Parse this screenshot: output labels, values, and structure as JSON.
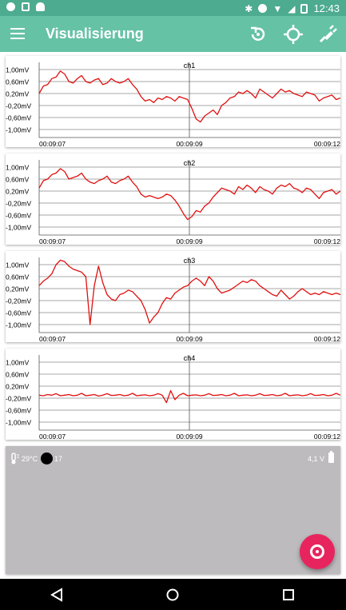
{
  "status_bar": {
    "time": "12:43",
    "icons": [
      "chrome-dino-icon",
      "lock-icon",
      "android-icon",
      "bluetooth-icon",
      "do-not-disturb-icon",
      "wifi-icon",
      "signal-icon",
      "battery-icon"
    ]
  },
  "app_bar": {
    "title": "Visualisierung",
    "actions": [
      "reset-icon",
      "target-icon",
      "plug-icon"
    ]
  },
  "y_ticks": [
    "1,00mV",
    "0,60mV",
    "0,20mV",
    "-0,20mV",
    "-0,60mV",
    "-1,00mV"
  ],
  "chart_data": [
    {
      "type": "line",
      "title": "ch1",
      "x_ticks": [
        "00:09:07",
        "00:09:09",
        "00:09:12"
      ],
      "ylim": [
        -1.2,
        1.2
      ],
      "color": "#e0100f",
      "y": [
        0.2,
        0.45,
        0.5,
        0.7,
        0.75,
        0.95,
        0.85,
        0.6,
        0.55,
        0.7,
        0.8,
        0.6,
        0.55,
        0.65,
        0.7,
        0.5,
        0.55,
        0.7,
        0.6,
        0.55,
        0.6,
        0.7,
        0.5,
        0.35,
        0.1,
        -0.05,
        0.0,
        -0.1,
        0.05,
        0.0,
        0.1,
        0.05,
        -0.05,
        0.1,
        0.05,
        0.0,
        -0.3,
        -0.65,
        -0.75,
        -0.55,
        -0.45,
        -0.35,
        -0.5,
        -0.2,
        -0.1,
        0.05,
        0.1,
        0.25,
        0.2,
        0.3,
        0.2,
        0.05,
        0.35,
        0.25,
        0.15,
        0.05,
        0.2,
        0.35,
        0.25,
        0.3,
        0.2,
        0.15,
        0.1,
        0.25,
        0.2,
        0.15,
        -0.05,
        0.05,
        0.1,
        0.15,
        0.0,
        0.05
      ]
    },
    {
      "type": "line",
      "title": "ch2",
      "x_ticks": [
        "00:09:07",
        "00:09:09",
        "00:09:12"
      ],
      "ylim": [
        -1.2,
        1.2
      ],
      "color": "#e0100f",
      "y": [
        0.3,
        0.55,
        0.6,
        0.75,
        0.8,
        0.95,
        0.85,
        0.6,
        0.65,
        0.7,
        0.8,
        0.6,
        0.5,
        0.45,
        0.55,
        0.6,
        0.7,
        0.5,
        0.45,
        0.55,
        0.6,
        0.7,
        0.5,
        0.35,
        0.1,
        0.0,
        0.05,
        0.0,
        -0.05,
        0.0,
        0.1,
        0.05,
        -0.1,
        -0.3,
        -0.55,
        -0.75,
        -0.65,
        -0.45,
        -0.5,
        -0.3,
        -0.2,
        0.0,
        0.15,
        0.3,
        0.25,
        0.2,
        0.1,
        0.35,
        0.25,
        0.4,
        0.3,
        0.15,
        0.35,
        0.25,
        0.2,
        0.1,
        0.3,
        0.4,
        0.35,
        0.45,
        0.3,
        0.25,
        0.15,
        0.3,
        0.25,
        0.1,
        -0.05,
        0.15,
        0.2,
        0.25,
        0.1,
        0.2
      ]
    },
    {
      "type": "line",
      "title": "ch3",
      "x_ticks": [
        "00:09:07",
        "00:09:09",
        "00:09:12"
      ],
      "ylim": [
        -1.2,
        1.2
      ],
      "color": "#e0100f",
      "y": [
        0.3,
        0.45,
        0.55,
        0.7,
        1.0,
        1.15,
        1.1,
        0.95,
        0.85,
        0.8,
        0.75,
        0.6,
        -1.0,
        0.3,
        0.95,
        0.4,
        0.0,
        -0.15,
        -0.2,
        0.0,
        0.05,
        0.15,
        0.1,
        -0.05,
        -0.2,
        -0.5,
        -0.95,
        -0.75,
        -0.6,
        -0.3,
        -0.1,
        -0.15,
        0.05,
        0.15,
        0.25,
        0.3,
        0.45,
        0.55,
        0.45,
        0.3,
        0.6,
        0.45,
        0.2,
        0.05,
        0.1,
        0.15,
        0.25,
        0.35,
        0.45,
        0.4,
        0.5,
        0.45,
        0.3,
        0.2,
        0.1,
        0.0,
        -0.05,
        0.15,
        0.0,
        -0.15,
        -0.05,
        0.1,
        0.2,
        0.1,
        0.0,
        0.05,
        0.0,
        0.1,
        0.05,
        0.0,
        0.05,
        0.0
      ]
    },
    {
      "type": "line",
      "title": "ch4",
      "x_ticks": [
        "00:09:07",
        "00:09:09",
        "00:09:12"
      ],
      "ylim": [
        -1.2,
        1.2
      ],
      "color": "#e0100f",
      "y": [
        -0.1,
        -0.12,
        -0.08,
        -0.1,
        -0.05,
        -0.12,
        -0.1,
        -0.08,
        -0.12,
        -0.1,
        -0.04,
        -0.12,
        -0.1,
        -0.08,
        -0.13,
        -0.1,
        -0.05,
        -0.11,
        -0.1,
        -0.08,
        -0.12,
        -0.1,
        -0.04,
        -0.12,
        -0.1,
        -0.09,
        -0.12,
        -0.1,
        -0.05,
        -0.1,
        -0.35,
        0.05,
        -0.25,
        -0.1,
        -0.04,
        -0.12,
        -0.1,
        -0.09,
        -0.12,
        -0.1,
        -0.05,
        -0.11,
        -0.1,
        -0.08,
        -0.12,
        -0.1,
        -0.04,
        -0.12,
        -0.1,
        -0.09,
        -0.12,
        -0.1,
        -0.05,
        -0.11,
        -0.1,
        -0.08,
        -0.12,
        -0.1,
        -0.04,
        -0.12,
        -0.1,
        -0.09,
        -0.12,
        -0.1,
        -0.05,
        -0.11,
        -0.1,
        -0.08,
        -0.12,
        -0.1,
        -0.04,
        -0.1
      ]
    }
  ],
  "device_status": {
    "temperature": "29°C",
    "count": "17",
    "voltage": "4,1 V"
  },
  "fab": {
    "icon": "record-icon"
  },
  "nav_bar": {
    "buttons": [
      "back-icon",
      "home-icon",
      "recents-icon"
    ]
  }
}
